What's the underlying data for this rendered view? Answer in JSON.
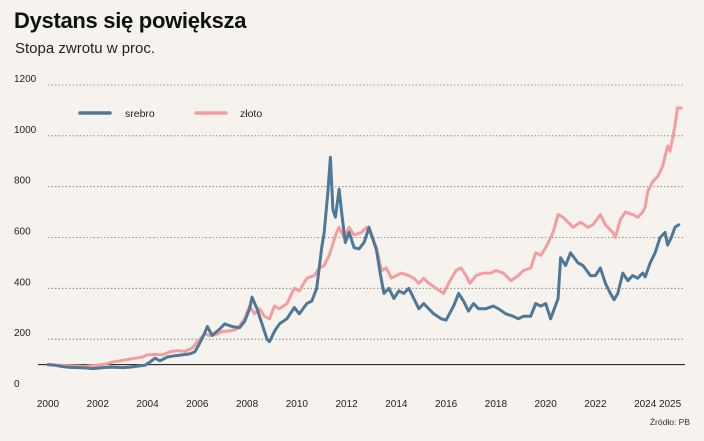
{
  "title": "Dystans się powiększa",
  "subtitle": "Stopa zwrotu w proc.",
  "source": "Źródło: PB",
  "colors": {
    "silver": "#4f7897",
    "gold": "#f29ea0",
    "grid": "#777777",
    "baseline": "#111111"
  },
  "chart_data": {
    "type": "line",
    "title": "Dystans się powiększa",
    "subtitle": "Stopa zwrotu w proc.",
    "xlabel": "",
    "ylabel": "",
    "xlim": [
      2000,
      2025.6
    ],
    "ylim": [
      0,
      1200
    ],
    "x_ticks": [
      2000,
      2002,
      2004,
      2006,
      2008,
      2010,
      2012,
      2014,
      2016,
      2018,
      2020,
      2022,
      2024,
      2025
    ],
    "x_tick_labels": [
      "2000",
      "2002",
      "2004",
      "2006",
      "2008",
      "2010",
      "2012",
      "2014",
      "2016",
      "2018",
      "2020",
      "2022",
      "2024",
      "2025"
    ],
    "y_ticks": [
      0,
      200,
      400,
      600,
      800,
      1000,
      1200
    ],
    "y_tick_labels": [
      "0",
      "200",
      "400",
      "600",
      "800",
      "1000",
      "1200"
    ],
    "reference_line": 100,
    "grid": "horizontal-dotted",
    "legend": "top-left",
    "series": [
      {
        "name": "srebro",
        "points": [
          [
            2000.0,
            100
          ],
          [
            2000.3,
            97
          ],
          [
            2000.6,
            92
          ],
          [
            2000.9,
            89
          ],
          [
            2001.2,
            88
          ],
          [
            2001.5,
            87
          ],
          [
            2001.8,
            84
          ],
          [
            2002.0,
            86
          ],
          [
            2002.2,
            88
          ],
          [
            2002.5,
            90
          ],
          [
            2002.8,
            89
          ],
          [
            2003.0,
            88
          ],
          [
            2003.3,
            90
          ],
          [
            2003.6,
            94
          ],
          [
            2003.9,
            97
          ],
          [
            2004.1,
            110
          ],
          [
            2004.3,
            125
          ],
          [
            2004.5,
            115
          ],
          [
            2004.8,
            130
          ],
          [
            2005.1,
            135
          ],
          [
            2005.4,
            138
          ],
          [
            2005.7,
            142
          ],
          [
            2005.9,
            150
          ],
          [
            2006.1,
            185
          ],
          [
            2006.3,
            225
          ],
          [
            2006.4,
            250
          ],
          [
            2006.6,
            215
          ],
          [
            2006.9,
            240
          ],
          [
            2007.1,
            260
          ],
          [
            2007.4,
            250
          ],
          [
            2007.7,
            245
          ],
          [
            2007.9,
            270
          ],
          [
            2008.1,
            320
          ],
          [
            2008.2,
            365
          ],
          [
            2008.4,
            320
          ],
          [
            2008.6,
            260
          ],
          [
            2008.8,
            200
          ],
          [
            2008.9,
            190
          ],
          [
            2009.1,
            230
          ],
          [
            2009.3,
            260
          ],
          [
            2009.6,
            280
          ],
          [
            2009.9,
            325
          ],
          [
            2010.1,
            300
          ],
          [
            2010.4,
            340
          ],
          [
            2010.6,
            350
          ],
          [
            2010.8,
            400
          ],
          [
            2011.0,
            560
          ],
          [
            2011.1,
            620
          ],
          [
            2011.25,
            780
          ],
          [
            2011.35,
            915
          ],
          [
            2011.45,
            710
          ],
          [
            2011.55,
            680
          ],
          [
            2011.7,
            790
          ],
          [
            2011.8,
            700
          ],
          [
            2011.95,
            580
          ],
          [
            2012.1,
            620
          ],
          [
            2012.3,
            560
          ],
          [
            2012.5,
            555
          ],
          [
            2012.7,
            580
          ],
          [
            2012.9,
            640
          ],
          [
            2013.0,
            610
          ],
          [
            2013.2,
            550
          ],
          [
            2013.35,
            460
          ],
          [
            2013.5,
            380
          ],
          [
            2013.7,
            400
          ],
          [
            2013.9,
            360
          ],
          [
            2014.1,
            390
          ],
          [
            2014.3,
            380
          ],
          [
            2014.5,
            400
          ],
          [
            2014.7,
            360
          ],
          [
            2014.9,
            320
          ],
          [
            2015.1,
            340
          ],
          [
            2015.3,
            320
          ],
          [
            2015.5,
            300
          ],
          [
            2015.8,
            280
          ],
          [
            2016.0,
            275
          ],
          [
            2016.3,
            330
          ],
          [
            2016.5,
            380
          ],
          [
            2016.7,
            350
          ],
          [
            2016.9,
            310
          ],
          [
            2017.1,
            340
          ],
          [
            2017.3,
            320
          ],
          [
            2017.6,
            320
          ],
          [
            2017.9,
            330
          ],
          [
            2018.1,
            320
          ],
          [
            2018.4,
            300
          ],
          [
            2018.7,
            290
          ],
          [
            2018.9,
            280
          ],
          [
            2019.1,
            290
          ],
          [
            2019.4,
            290
          ],
          [
            2019.6,
            340
          ],
          [
            2019.8,
            330
          ],
          [
            2020.0,
            340
          ],
          [
            2020.2,
            280
          ],
          [
            2020.5,
            360
          ],
          [
            2020.6,
            520
          ],
          [
            2020.8,
            490
          ],
          [
            2021.0,
            540
          ],
          [
            2021.3,
            500
          ],
          [
            2021.5,
            490
          ],
          [
            2021.8,
            450
          ],
          [
            2022.0,
            450
          ],
          [
            2022.2,
            480
          ],
          [
            2022.4,
            420
          ],
          [
            2022.6,
            380
          ],
          [
            2022.75,
            355
          ],
          [
            2022.9,
            380
          ],
          [
            2023.1,
            460
          ],
          [
            2023.3,
            430
          ],
          [
            2023.5,
            450
          ],
          [
            2023.7,
            440
          ],
          [
            2023.9,
            460
          ],
          [
            2024.0,
            445
          ],
          [
            2024.2,
            500
          ],
          [
            2024.4,
            540
          ],
          [
            2024.6,
            600
          ],
          [
            2024.8,
            620
          ],
          [
            2024.9,
            570
          ],
          [
            2025.05,
            600
          ],
          [
            2025.2,
            640
          ],
          [
            2025.35,
            650
          ]
        ]
      },
      {
        "name": "złoto",
        "points": [
          [
            2000.0,
            100
          ],
          [
            2000.3,
            98
          ],
          [
            2000.6,
            97
          ],
          [
            2000.9,
            95
          ],
          [
            2001.2,
            94
          ],
          [
            2001.5,
            93
          ],
          [
            2001.8,
            96
          ],
          [
            2002.0,
            98
          ],
          [
            2002.3,
            102
          ],
          [
            2002.6,
            110
          ],
          [
            2002.9,
            115
          ],
          [
            2003.2,
            120
          ],
          [
            2003.5,
            125
          ],
          [
            2003.8,
            130
          ],
          [
            2004.0,
            138
          ],
          [
            2004.3,
            140
          ],
          [
            2004.6,
            138
          ],
          [
            2004.9,
            150
          ],
          [
            2005.2,
            155
          ],
          [
            2005.5,
            152
          ],
          [
            2005.8,
            165
          ],
          [
            2006.0,
            190
          ],
          [
            2006.3,
            220
          ],
          [
            2006.5,
            215
          ],
          [
            2006.8,
            220
          ],
          [
            2007.0,
            230
          ],
          [
            2007.3,
            232
          ],
          [
            2007.6,
            240
          ],
          [
            2007.9,
            280
          ],
          [
            2008.1,
            330
          ],
          [
            2008.3,
            300
          ],
          [
            2008.5,
            320
          ],
          [
            2008.7,
            290
          ],
          [
            2008.9,
            280
          ],
          [
            2009.1,
            330
          ],
          [
            2009.3,
            320
          ],
          [
            2009.6,
            340
          ],
          [
            2009.9,
            400
          ],
          [
            2010.1,
            390
          ],
          [
            2010.4,
            440
          ],
          [
            2010.7,
            450
          ],
          [
            2010.9,
            480
          ],
          [
            2011.1,
            490
          ],
          [
            2011.3,
            530
          ],
          [
            2011.6,
            620
          ],
          [
            2011.7,
            640
          ],
          [
            2011.9,
            600
          ],
          [
            2012.1,
            640
          ],
          [
            2012.3,
            610
          ],
          [
            2012.6,
            620
          ],
          [
            2012.8,
            640
          ],
          [
            2013.0,
            610
          ],
          [
            2013.2,
            560
          ],
          [
            2013.4,
            470
          ],
          [
            2013.6,
            480
          ],
          [
            2013.8,
            440
          ],
          [
            2014.0,
            450
          ],
          [
            2014.2,
            460
          ],
          [
            2014.5,
            450
          ],
          [
            2014.7,
            440
          ],
          [
            2014.9,
            420
          ],
          [
            2015.1,
            440
          ],
          [
            2015.3,
            420
          ],
          [
            2015.6,
            400
          ],
          [
            2015.9,
            380
          ],
          [
            2016.1,
            420
          ],
          [
            2016.4,
            470
          ],
          [
            2016.6,
            480
          ],
          [
            2016.8,
            450
          ],
          [
            2016.95,
            420
          ],
          [
            2017.2,
            450
          ],
          [
            2017.5,
            460
          ],
          [
            2017.8,
            460
          ],
          [
            2018.0,
            470
          ],
          [
            2018.3,
            460
          ],
          [
            2018.6,
            430
          ],
          [
            2018.9,
            450
          ],
          [
            2019.1,
            470
          ],
          [
            2019.4,
            480
          ],
          [
            2019.6,
            540
          ],
          [
            2019.8,
            530
          ],
          [
            2020.0,
            560
          ],
          [
            2020.3,
            620
          ],
          [
            2020.5,
            690
          ],
          [
            2020.7,
            680
          ],
          [
            2020.9,
            660
          ],
          [
            2021.1,
            640
          ],
          [
            2021.4,
            660
          ],
          [
            2021.7,
            640
          ],
          [
            2021.9,
            650
          ],
          [
            2022.2,
            690
          ],
          [
            2022.4,
            650
          ],
          [
            2022.7,
            620
          ],
          [
            2022.8,
            600
          ],
          [
            2023.0,
            670
          ],
          [
            2023.2,
            700
          ],
          [
            2023.5,
            690
          ],
          [
            2023.7,
            680
          ],
          [
            2023.9,
            700
          ],
          [
            2024.0,
            720
          ],
          [
            2024.1,
            780
          ],
          [
            2024.3,
            820
          ],
          [
            2024.5,
            840
          ],
          [
            2024.7,
            880
          ],
          [
            2024.9,
            960
          ],
          [
            2025.0,
            940
          ],
          [
            2025.1,
            990
          ],
          [
            2025.2,
            1040
          ],
          [
            2025.3,
            1110
          ],
          [
            2025.45,
            1110
          ]
        ]
      }
    ]
  }
}
